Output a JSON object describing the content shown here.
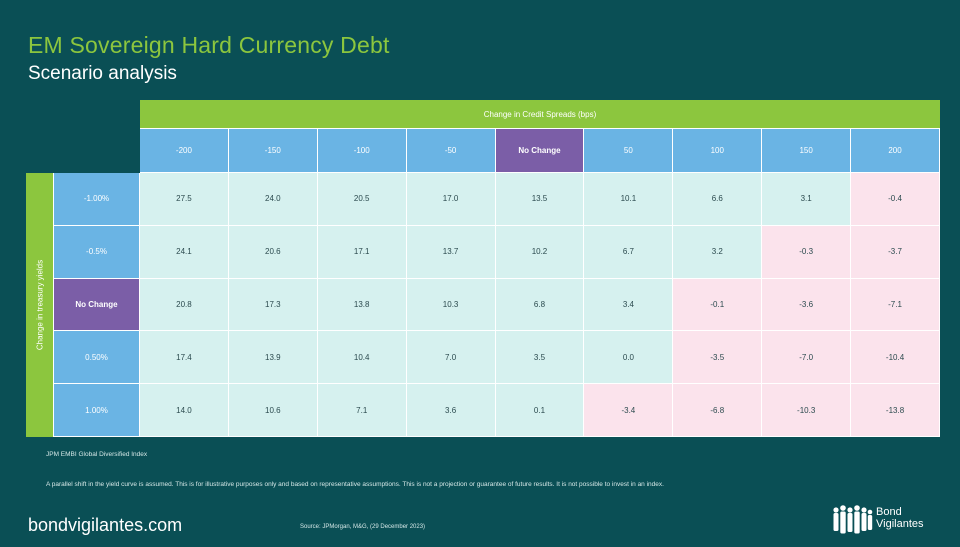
{
  "header": {
    "title": "EM Sovereign Hard Currency Debt",
    "subtitle": "Scenario analysis"
  },
  "table": {
    "column_group_label": "Change in Credit Spreads (bps)",
    "row_group_label": "Change in treasury yields",
    "columns": [
      "-200",
      "-150",
      "-100",
      "-50",
      "No Change",
      "50",
      "100",
      "150",
      "200"
    ],
    "rows": [
      {
        "label": "-1.00%",
        "values": [
          "27.5",
          "24.0",
          "20.5",
          "17.0",
          "13.5",
          "10.1",
          "6.6",
          "3.1",
          "-0.4"
        ]
      },
      {
        "label": "-0.5%",
        "values": [
          "24.1",
          "20.6",
          "17.1",
          "13.7",
          "10.2",
          "6.7",
          "3.2",
          "-0.3",
          "-3.7"
        ]
      },
      {
        "label": "No Change",
        "values": [
          "20.8",
          "17.3",
          "13.8",
          "10.3",
          "6.8",
          "3.4",
          "-0.1",
          "-3.6",
          "-7.1"
        ]
      },
      {
        "label": "0.50%",
        "values": [
          "17.4",
          "13.9",
          "10.4",
          "7.0",
          "3.5",
          "0.0",
          "-3.5",
          "-7.0",
          "-10.4"
        ]
      },
      {
        "label": "1.00%",
        "values": [
          "14.0",
          "10.6",
          "7.1",
          "3.6",
          "0.1",
          "-3.4",
          "-6.8",
          "-10.3",
          "-13.8"
        ]
      }
    ]
  },
  "colors": {
    "background": "#0a4f55",
    "accent_green": "#8cc63e",
    "header_blue": "#6ab4e4",
    "no_change_purple": "#7b5ea7",
    "positive_cell": "#d6f1ef",
    "negative_cell": "#fbe3ec"
  },
  "footer": {
    "index_name": "JPM EMBI Global Diversified Index",
    "disclaimer": "A parallel shift in the yield curve is assumed. This is for illustrative purposes only and based on representative assumptions. This is not a projection or guarantee of future results. It is not possible to invest in an index.",
    "brand": "bondvigilantes.com",
    "source": "Source: JPMorgan, M&G, (29 December 2023)",
    "logo_line1": "Bond",
    "logo_line2": "Vigilantes",
    "logo_icon": "people-group-icon"
  }
}
